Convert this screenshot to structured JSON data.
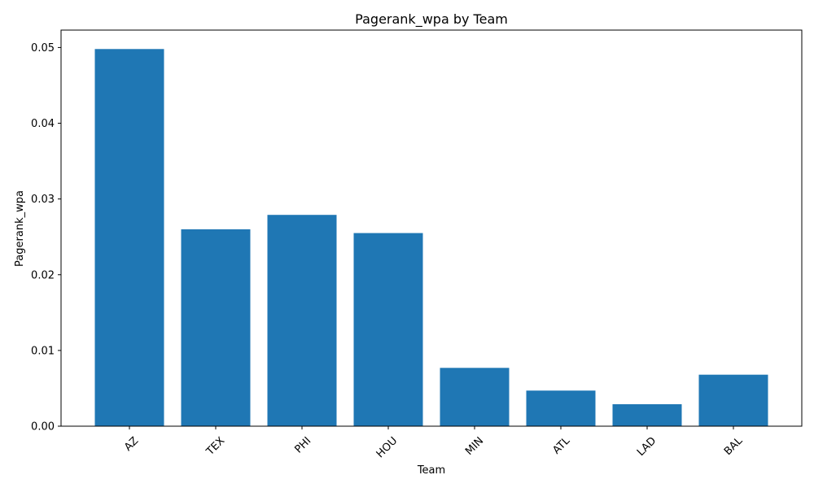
{
  "chart_data": {
    "type": "bar",
    "title": "Pagerank_wpa by Team",
    "xlabel": "Team",
    "ylabel": "Pagerank_wpa",
    "categories": [
      "AZ",
      "TEX",
      "PHI",
      "HOU",
      "MIN",
      "ATL",
      "LAD",
      "BAL"
    ],
    "values": [
      0.0498,
      0.026,
      0.0279,
      0.0255,
      0.0077,
      0.0047,
      0.0029,
      0.0068
    ],
    "ylim": [
      0,
      0.0523
    ],
    "yticks": [
      "0.00",
      "0.01",
      "0.02",
      "0.03",
      "0.04",
      "0.05"
    ],
    "bar_color": "#1f77b4",
    "grid": false,
    "legend": "none"
  }
}
